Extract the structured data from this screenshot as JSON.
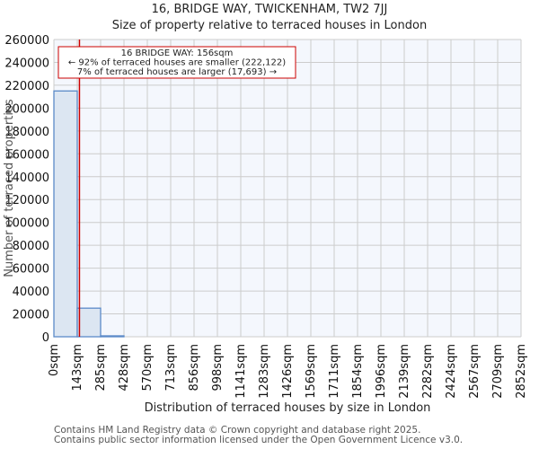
{
  "title": "16, BRIDGE WAY, TWICKENHAM, TW2 7JJ",
  "subtitle": "Size of property relative to terraced houses in London",
  "annotation": {
    "line1": "16 BRIDGE WAY: 156sqm",
    "line2": "← 92% of terraced houses are smaller (222,122)",
    "line3": "7% of terraced houses are larger (17,693) →"
  },
  "footer": {
    "line1": "Contains HM Land Registry data © Crown copyright and database right 2025.",
    "line2": "Contains public sector information licensed under the Open Government Licence v3.0."
  },
  "colors": {
    "bar_fill": "#dce6f2",
    "bar_edge": "#5b8ac8",
    "marker_line": "#cc0000",
    "plot_bg": "#f4f7fd",
    "grid": "#cccccc"
  },
  "chart_data": {
    "type": "bar",
    "title": "16, BRIDGE WAY, TWICKENHAM, TW2 7JJ — Size of property relative to terraced houses in London",
    "xlabel": "Distribution of terraced houses by size in London",
    "ylabel": "Number of terraced properties",
    "categories": [
      "0sqm",
      "143sqm",
      "285sqm",
      "428sqm",
      "570sqm",
      "713sqm",
      "856sqm",
      "998sqm",
      "1141sqm",
      "1283sqm",
      "1426sqm",
      "1569sqm",
      "1711sqm",
      "1854sqm",
      "1996sqm",
      "2139sqm",
      "2282sqm",
      "2424sqm",
      "2567sqm",
      "2709sqm",
      "2852sqm"
    ],
    "values": [
      215000,
      25000,
      800,
      0,
      0,
      0,
      0,
      0,
      0,
      0,
      0,
      0,
      0,
      0,
      0,
      0,
      0,
      0,
      0,
      0
    ],
    "yticks": [
      "0",
      "20000",
      "40000",
      "60000",
      "80000",
      "100000",
      "120000",
      "140000",
      "160000",
      "180000",
      "200000",
      "220000",
      "240000",
      "260000"
    ],
    "ylim": [
      0,
      260000
    ],
    "marker": {
      "value_sqm": 156,
      "label": "16 BRIDGE WAY: 156sqm"
    },
    "grid": true,
    "legend": "none"
  }
}
